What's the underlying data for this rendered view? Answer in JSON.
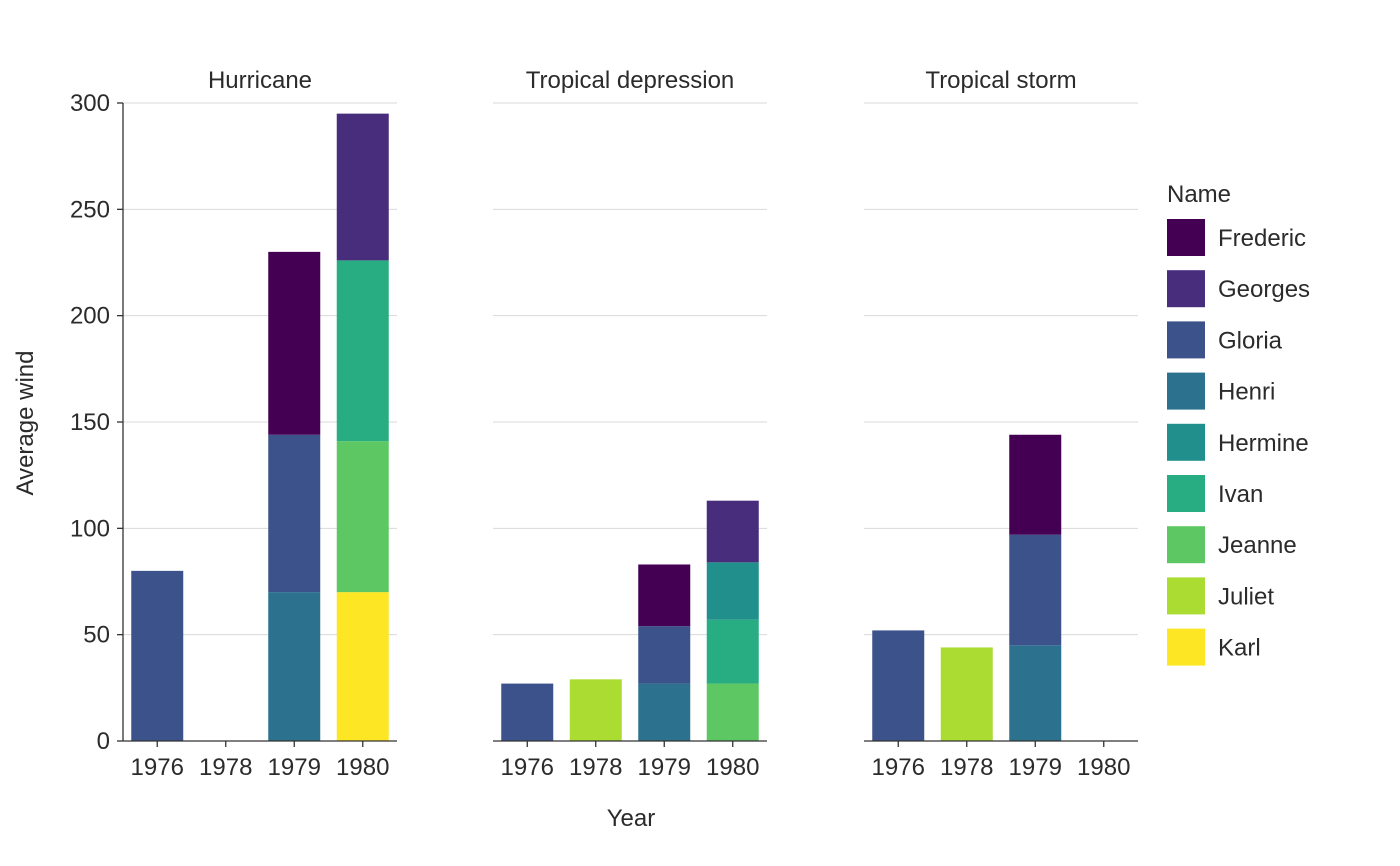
{
  "chart_data": {
    "type": "bar",
    "stacked": true,
    "facet_by": "Storm status",
    "ylabel": "Average wind",
    "xlabel": "Year",
    "ylim": [
      0,
      300
    ],
    "yticks": [
      0,
      50,
      100,
      150,
      200,
      250,
      300
    ],
    "categories": [
      "1976",
      "1978",
      "1979",
      "1980"
    ],
    "legend": {
      "title": "Name",
      "position": "right",
      "entries": [
        {
          "name": "Frederic",
          "color": "#440154"
        },
        {
          "name": "Georges",
          "color": "#472D7B"
        },
        {
          "name": "Gloria",
          "color": "#3B528B"
        },
        {
          "name": "Henri",
          "color": "#2C728E"
        },
        {
          "name": "Hermine",
          "color": "#21908C"
        },
        {
          "name": "Ivan",
          "color": "#27AD81"
        },
        {
          "name": "Jeanne",
          "color": "#5DC863"
        },
        {
          "name": "Juliet",
          "color": "#AADC32"
        },
        {
          "name": "Karl",
          "color": "#FDE725"
        }
      ]
    },
    "panels": [
      {
        "title": "Hurricane",
        "bars": [
          {
            "year": "1976",
            "segments": [
              {
                "name": "Gloria",
                "value": 80
              }
            ]
          },
          {
            "year": "1978",
            "segments": []
          },
          {
            "year": "1979",
            "segments": [
              {
                "name": "Henri",
                "value": 70
              },
              {
                "name": "Gloria",
                "value": 74
              },
              {
                "name": "Frederic",
                "value": 86
              }
            ]
          },
          {
            "year": "1980",
            "segments": [
              {
                "name": "Karl",
                "value": 70
              },
              {
                "name": "Jeanne",
                "value": 71
              },
              {
                "name": "Ivan",
                "value": 85
              },
              {
                "name": "Georges",
                "value": 69
              }
            ]
          }
        ]
      },
      {
        "title": "Tropical depression",
        "bars": [
          {
            "year": "1976",
            "segments": [
              {
                "name": "Gloria",
                "value": 27
              }
            ]
          },
          {
            "year": "1978",
            "segments": [
              {
                "name": "Juliet",
                "value": 29
              }
            ]
          },
          {
            "year": "1979",
            "segments": [
              {
                "name": "Henri",
                "value": 27
              },
              {
                "name": "Gloria",
                "value": 27
              },
              {
                "name": "Frederic",
                "value": 29
              }
            ]
          },
          {
            "year": "1980",
            "segments": [
              {
                "name": "Jeanne",
                "value": 27
              },
              {
                "name": "Ivan",
                "value": 30
              },
              {
                "name": "Hermine",
                "value": 27
              },
              {
                "name": "Georges",
                "value": 29
              }
            ]
          }
        ]
      },
      {
        "title": "Tropical storm",
        "bars": [
          {
            "year": "1976",
            "segments": [
              {
                "name": "Gloria",
                "value": 52
              }
            ]
          },
          {
            "year": "1978",
            "segments": [
              {
                "name": "Juliet",
                "value": 44
              }
            ]
          },
          {
            "year": "1979",
            "segments": [
              {
                "name": "Henri",
                "value": 45
              },
              {
                "name": "Gloria",
                "value": 52
              },
              {
                "name": "Frederic",
                "value": 47
              }
            ]
          },
          {
            "year": "1980",
            "segments": []
          }
        ]
      }
    ]
  }
}
